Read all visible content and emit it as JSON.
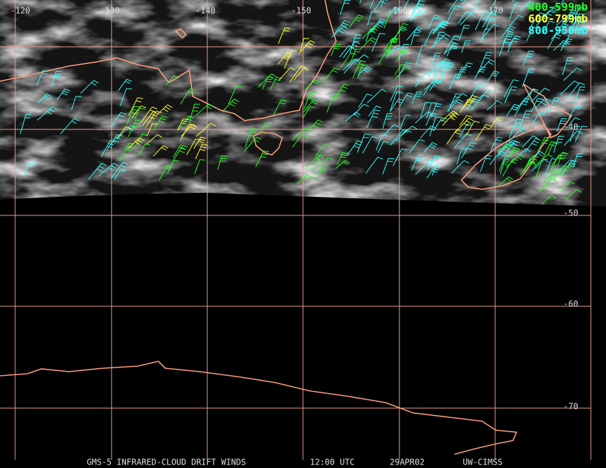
{
  "map": {
    "longitude_labels": [
      "-120",
      "-130",
      "-140",
      "-150",
      "-160",
      "-170"
    ],
    "latitude_labels": [
      "-40",
      "-50",
      "-60",
      "-70"
    ],
    "legend": [
      "400-599mb",
      "600-799mb",
      "800-950mb"
    ],
    "footer": [
      "GMS-5 INFRARED-CLOUD DRIFT WINDS",
      "12:00 UTC",
      "29APR02",
      "UW-CIMSS"
    ]
  }
}
